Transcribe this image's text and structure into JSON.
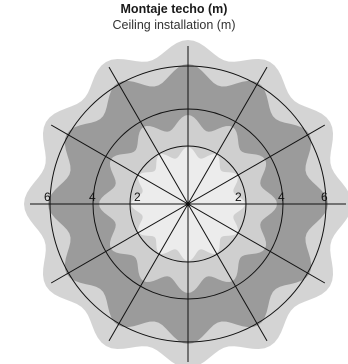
{
  "title": "Montaje techo (m)",
  "subtitle": "Ceiling installation (m)",
  "distance_labels": {
    "left_outer": "6",
    "left_mid": "4",
    "left_inner": "2",
    "right_inner": "2",
    "right_mid": "4",
    "right_outer": "6"
  },
  "colors": {
    "outer_zone": "#d4d4d4",
    "mid_zone": "#9b9b9b",
    "inner_zone": "#cfcfcf",
    "core_zone": "#ececec",
    "lines": "#111111",
    "background": "#ffffff"
  }
}
